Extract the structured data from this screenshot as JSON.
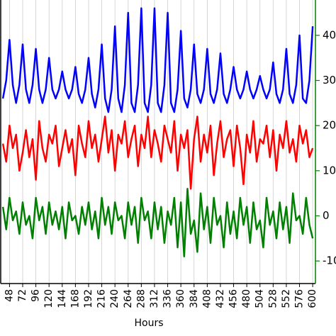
{
  "chart_data": {
    "type": "line",
    "x_label": "Hours",
    "x": [
      36,
      42,
      48,
      54,
      60,
      66,
      72,
      78,
      84,
      90,
      96,
      102,
      108,
      114,
      120,
      126,
      132,
      138,
      144,
      150,
      156,
      162,
      168,
      174,
      180,
      186,
      192,
      198,
      204,
      210,
      216,
      222,
      228,
      234,
      240,
      246,
      252,
      258,
      264,
      270,
      276,
      282,
      288,
      294,
      300,
      306,
      312,
      318,
      324,
      330,
      336,
      342,
      348,
      354,
      360,
      366,
      372,
      378,
      384,
      390,
      396,
      402,
      408,
      414,
      420,
      426,
      432,
      438,
      444,
      450,
      456,
      462,
      468,
      474,
      480,
      486,
      492,
      498,
      504,
      510,
      516,
      522,
      528,
      534,
      540,
      546,
      552,
      558,
      564,
      570,
      576,
      582,
      588,
      594,
      600
    ],
    "series": [
      {
        "name": "blue",
        "color": "#0000ff",
        "values": [
          26,
          30,
          39,
          29,
          25,
          29,
          38,
          28,
          25,
          29,
          37,
          28,
          25,
          28,
          35,
          28,
          26,
          28,
          32,
          28,
          26,
          28,
          33,
          27,
          25,
          28,
          35,
          27,
          24,
          28,
          38,
          26,
          23,
          28,
          42,
          26,
          23,
          29,
          45,
          25,
          23,
          29,
          46,
          25,
          23,
          29,
          46,
          25,
          23,
          29,
          45,
          25,
          23,
          28,
          41,
          26,
          24,
          28,
          38,
          27,
          25,
          28,
          37,
          27,
          25,
          28,
          36,
          27,
          25,
          28,
          33,
          28,
          26,
          28,
          32,
          28,
          26,
          28,
          31,
          28,
          26,
          28,
          34,
          27,
          25,
          28,
          37,
          27,
          25,
          29,
          40,
          26,
          25,
          30,
          42
        ]
      },
      {
        "name": "red",
        "color": "#ff0000",
        "values": [
          16,
          12,
          20,
          15,
          18,
          10,
          14,
          19,
          13,
          17,
          8,
          21,
          15,
          12,
          18,
          16,
          20,
          11,
          15,
          19,
          14,
          17,
          9,
          20,
          16,
          13,
          21,
          15,
          18,
          12,
          17,
          22,
          14,
          19,
          10,
          18,
          16,
          21,
          13,
          17,
          20,
          11,
          18,
          15,
          22,
          13,
          19,
          16,
          12,
          20,
          17,
          14,
          21,
          10,
          18,
          15,
          19,
          6,
          17,
          22,
          12,
          18,
          14,
          20,
          9,
          16,
          21,
          13,
          17,
          19,
          11,
          20,
          15,
          7,
          18,
          14,
          21,
          12,
          17,
          16,
          20,
          13,
          19,
          10,
          18,
          15,
          21,
          14,
          17,
          12,
          20,
          16,
          19,
          13,
          15
        ]
      },
      {
        "name": "green",
        "color": "#008000",
        "values": [
          2,
          -3,
          4,
          -1,
          1,
          -4,
          3,
          -2,
          0,
          -5,
          4,
          -1,
          2,
          -4,
          3,
          -2,
          1,
          -3,
          2,
          -5,
          3,
          -1,
          0,
          -4,
          2,
          -2,
          3,
          -3,
          1,
          -5,
          4,
          -2,
          2,
          -4,
          3,
          -1,
          0,
          -5,
          3,
          -2,
          2,
          -6,
          4,
          -1,
          1,
          -5,
          3,
          -3,
          2,
          -6,
          1,
          -2,
          4,
          -7,
          3,
          -9,
          6,
          -4,
          -1,
          -8,
          5,
          -3,
          2,
          -6,
          4,
          -2,
          0,
          -7,
          3,
          -4,
          1,
          -5,
          4,
          -2,
          2,
          -6,
          3,
          -3,
          -1,
          -7,
          4,
          -2,
          1,
          -5,
          3,
          -3,
          2,
          -6,
          5,
          -1,
          0,
          -4,
          4,
          -2,
          -5
        ]
      }
    ],
    "xlim": [
      32,
      605
    ],
    "xticks": [
      48,
      72,
      96,
      120,
      144,
      168,
      192,
      216,
      240,
      264,
      288,
      312,
      336,
      360,
      384,
      408,
      432,
      456,
      480,
      504,
      528,
      552,
      576,
      600
    ],
    "ylim": [
      -15,
      45
    ],
    "yticks": [
      -10,
      0,
      10,
      20,
      30,
      40
    ],
    "y_axis_color": "#008000",
    "grid": true
  }
}
